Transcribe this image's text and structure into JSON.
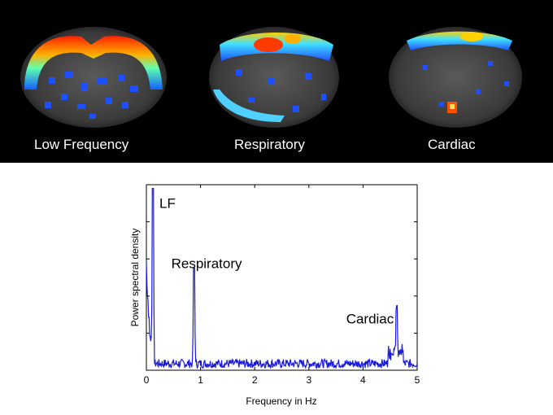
{
  "panel_labels": [
    "Low Frequency",
    "Respiratory",
    "Cardiac"
  ],
  "chart_data": {
    "type": "line",
    "xlabel": "Frequency in Hz",
    "ylabel": "Power spectral density",
    "xlim": [
      0,
      5
    ],
    "ylim": [
      0,
      1
    ],
    "x_ticks": [
      "0",
      "1",
      "2",
      "3",
      "4",
      "5"
    ],
    "y_tick_labels": [],
    "series_color": "#1a1adb",
    "peaks": [
      {
        "label": "LF",
        "x": 0.12,
        "y": 0.98
      },
      {
        "label": "Respiratory",
        "x": 0.88,
        "y": 0.55
      },
      {
        "label": "Cardiac",
        "x": 4.62,
        "y": 0.27
      }
    ],
    "noise_floor": 0.04
  }
}
